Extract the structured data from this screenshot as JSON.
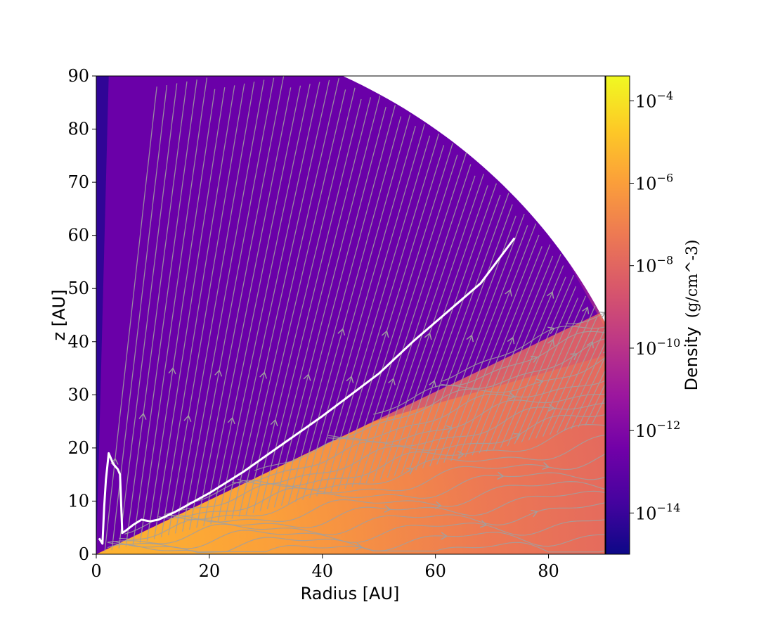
{
  "chart_data": {
    "type": "heatmap",
    "title": "",
    "xlabel": "Radius [AU]",
    "ylabel": "z [AU]",
    "xlim": [
      0,
      90
    ],
    "ylim": [
      0,
      90
    ],
    "x_ticks": [
      0,
      20,
      40,
      60,
      80
    ],
    "y_ticks": [
      0,
      10,
      20,
      30,
      40,
      50,
      60,
      70,
      80,
      90
    ],
    "domain_outer_radius": 100,
    "disk_surface_angle_deg": 27,
    "colorbar": {
      "label": "Density",
      "unit": "(g/cm^-3)",
      "scale": "log",
      "range": [
        1e-15,
        0.0004
      ],
      "ticks": [
        {
          "value": 1e-14,
          "base": "10",
          "exp": "−14"
        },
        {
          "value": 1e-12,
          "base": "10",
          "exp": "−12"
        },
        {
          "value": 1e-10,
          "base": "10",
          "exp": "−10"
        },
        {
          "value": 1e-08,
          "base": "10",
          "exp": "−8"
        },
        {
          "value": 1e-06,
          "base": "10",
          "exp": "−6"
        },
        {
          "value": 0.0001,
          "base": "10",
          "exp": "−4"
        }
      ],
      "colormap": [
        "#0d0887",
        "#46039f",
        "#7201a8",
        "#9c179e",
        "#bd3786",
        "#d8576b",
        "#ed7953",
        "#fb9f3a",
        "#fdca26",
        "#f0f921"
      ]
    },
    "streamline_color": "#a0a0a0",
    "contour_color": "#ffffff",
    "series": [
      {
        "points": [
          [
            0.5,
            3
          ],
          [
            1.1,
            2
          ],
          [
            1.4,
            9
          ],
          [
            1.7,
            14
          ],
          [
            2.2,
            19
          ],
          [
            3,
            17
          ],
          [
            3.8,
            16
          ],
          [
            4.2,
            15
          ],
          [
            4.6,
            4
          ],
          [
            5.3,
            4.5
          ],
          [
            6.5,
            5.5
          ],
          [
            8,
            6.5
          ],
          [
            9.5,
            6.2
          ],
          [
            11,
            6.5
          ],
          [
            14,
            8
          ],
          [
            20,
            11.5
          ],
          [
            26,
            15.5
          ],
          [
            32,
            20
          ],
          [
            40,
            26
          ],
          [
            50,
            34
          ],
          [
            56,
            40
          ],
          [
            62,
            45.5
          ],
          [
            68,
            51
          ],
          [
            74,
            59.5
          ]
        ]
      }
    ]
  }
}
